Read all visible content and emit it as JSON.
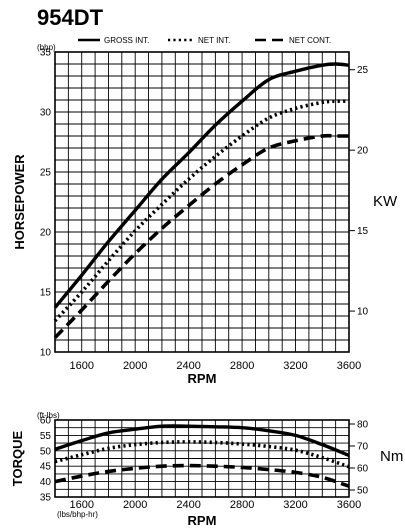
{
  "model": "954DT",
  "legend": [
    {
      "label": "GROSS INT.",
      "style": "solid"
    },
    {
      "label": "NET INT.",
      "style": "dotted"
    },
    {
      "label": "NET CONT.",
      "style": "dashed"
    }
  ],
  "chart_data": [
    {
      "type": "line",
      "id": "power",
      "unit_label": "(bhp)",
      "ylabel": "HORSEPOWER",
      "y2label": "KW",
      "xlabel": "RPM",
      "xlim": [
        1400,
        3600
      ],
      "ylim": [
        10,
        35
      ],
      "y2lim_kw": [
        7.457,
        26.1
      ],
      "x_ticks": [
        "1600",
        "2000",
        "2400",
        "2800",
        "3200",
        "3600"
      ],
      "y_ticks": [
        "10",
        "15",
        "20",
        "25",
        "30",
        "35"
      ],
      "y2_ticks": [
        "10",
        "15",
        "20",
        "25"
      ],
      "grid": true,
      "x": [
        1400,
        1600,
        1800,
        2000,
        2200,
        2400,
        2600,
        2800,
        3000,
        3200,
        3400,
        3500,
        3600
      ],
      "series": [
        {
          "name": "GROSS INT.",
          "style": "solid",
          "values": [
            13.7,
            16.4,
            19.2,
            21.8,
            24.4,
            26.6,
            28.9,
            30.9,
            32.7,
            33.4,
            33.9,
            34.0,
            33.9
          ]
        },
        {
          "name": "NET INT.",
          "style": "dotted",
          "values": [
            12.6,
            15.0,
            17.6,
            20.1,
            22.3,
            24.4,
            26.3,
            28.0,
            29.5,
            30.3,
            30.8,
            30.9,
            30.9
          ]
        },
        {
          "name": "NET CONT.",
          "style": "dashed",
          "values": [
            11.2,
            13.5,
            15.9,
            18.2,
            20.3,
            22.2,
            24.0,
            25.6,
            27.0,
            27.6,
            28.0,
            28.0,
            28.0
          ]
        }
      ]
    },
    {
      "type": "line",
      "id": "torque",
      "unit_label": "(ft-lbs)",
      "x_note": "(lbs/bhp-hr)",
      "ylabel": "TORQUE",
      "y2label": "Nm",
      "xlabel": "RPM",
      "xlim": [
        1400,
        3600
      ],
      "ylim": [
        35,
        60
      ],
      "x_ticks": [
        "1600",
        "2000",
        "2400",
        "2800",
        "3200",
        "3600"
      ],
      "y_ticks": [
        "35",
        "40",
        "45",
        "50",
        "55",
        "60"
      ],
      "y2_ticks": [
        "50",
        "60",
        "70",
        "80"
      ],
      "grid": true,
      "x": [
        1400,
        1600,
        1800,
        2000,
        2200,
        2400,
        2600,
        2800,
        3000,
        3200,
        3400,
        3600
      ],
      "series": [
        {
          "name": "GROSS INT.",
          "style": "solid",
          "values": [
            50.5,
            53.3,
            55.8,
            57.0,
            58.0,
            58.0,
            57.8,
            57.5,
            56.5,
            55.0,
            52.0,
            48.5
          ]
        },
        {
          "name": "NET INT.",
          "style": "dotted",
          "values": [
            46.5,
            48.7,
            50.8,
            52.0,
            52.7,
            52.9,
            52.7,
            52.2,
            51.4,
            50.2,
            47.8,
            44.8
          ]
        },
        {
          "name": "NET CONT.",
          "style": "dashed",
          "values": [
            40.0,
            41.8,
            43.3,
            44.3,
            45.0,
            45.2,
            45.0,
            44.6,
            43.9,
            43.0,
            41.4,
            38.5
          ]
        }
      ]
    }
  ]
}
